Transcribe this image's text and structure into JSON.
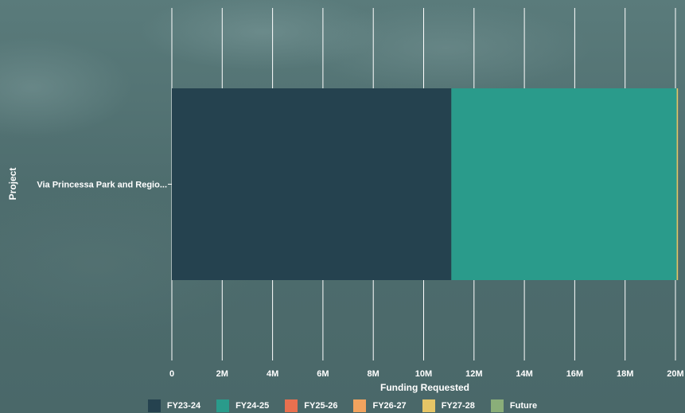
{
  "chart_data": {
    "type": "bar",
    "orientation": "horizontal",
    "stacked": true,
    "categories": [
      "Via Princessa Park and Regio..."
    ],
    "series": [
      {
        "name": "FY23-24",
        "values": [
          11100000
        ],
        "color": "#25424f"
      },
      {
        "name": "FY24-25",
        "values": [
          8950000
        ],
        "color": "#2a9b8b"
      },
      {
        "name": "FY25-26",
        "values": [
          0
        ],
        "color": "#e9704f"
      },
      {
        "name": "FY26-27",
        "values": [
          0
        ],
        "color": "#f2a35e"
      },
      {
        "name": "FY27-28",
        "values": [
          50000
        ],
        "color": "#e6c566"
      },
      {
        "name": "Future",
        "values": [
          0
        ],
        "color": "#8aae79"
      }
    ],
    "xlabel": "Funding Requested",
    "ylabel": "Project",
    "xlim": [
      0,
      20000000
    ],
    "xticks": [
      "0",
      "2M",
      "4M",
      "6M",
      "8M",
      "10M",
      "12M",
      "14M",
      "16M",
      "18M",
      "20M"
    ],
    "grid": true,
    "legend_position": "bottom"
  }
}
